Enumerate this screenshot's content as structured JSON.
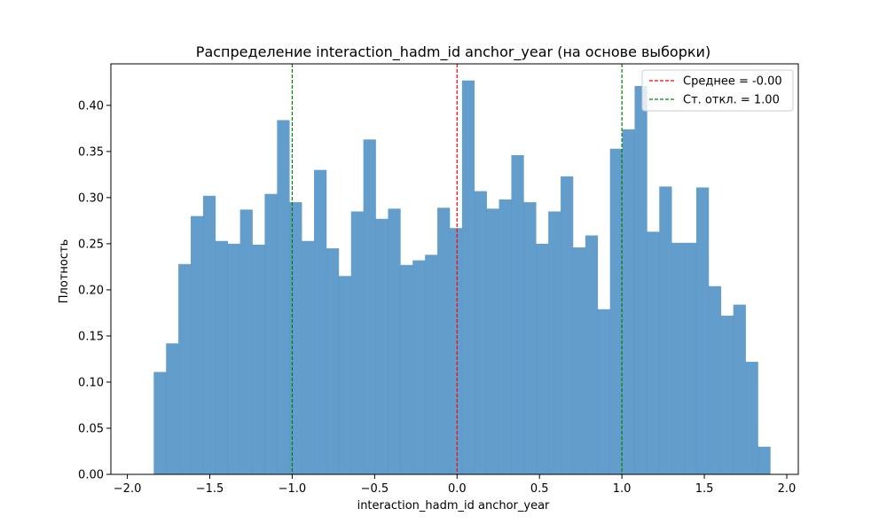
{
  "chart_data": {
    "type": "bar",
    "title": "Распределение interaction_hadm_id anchor_year (на основе выборки)",
    "xlabel": "interaction_hadm_id anchor_year",
    "ylabel": "Плотность",
    "xlim": [
      -2.1,
      2.07
    ],
    "ylim": [
      0,
      0.445
    ],
    "x_ticks": [
      "−2.0",
      "−1.5",
      "−1.0",
      "−0.5",
      "0.0",
      "0.5",
      "1.0",
      "1.5",
      "2.0"
    ],
    "x_tick_values": [
      -2.0,
      -1.5,
      -1.0,
      -0.5,
      0.0,
      0.5,
      1.0,
      1.5,
      2.0
    ],
    "y_ticks": [
      "0.00",
      "0.05",
      "0.10",
      "0.15",
      "0.20",
      "0.25",
      "0.30",
      "0.35",
      "0.40"
    ],
    "y_tick_values": [
      0.0,
      0.05,
      0.1,
      0.15,
      0.2,
      0.25,
      0.3,
      0.35,
      0.4
    ],
    "bin_start": -1.84,
    "bin_end": 1.9,
    "bar_color": "#4c8fc4",
    "values": [
      0.111,
      0.142,
      0.228,
      0.28,
      0.302,
      0.253,
      0.25,
      0.287,
      0.249,
      0.304,
      0.384,
      0.295,
      0.253,
      0.33,
      0.245,
      0.215,
      0.285,
      0.363,
      0.277,
      0.288,
      0.227,
      0.232,
      0.238,
      0.289,
      0.267,
      0.427,
      0.307,
      0.288,
      0.298,
      0.346,
      0.295,
      0.25,
      0.285,
      0.323,
      0.246,
      0.259,
      0.179,
      0.353,
      0.374,
      0.421,
      0.263,
      0.312,
      0.251,
      0.251,
      0.311,
      0.204,
      0.172,
      0.184,
      0.122,
      0.03
    ],
    "vlines": [
      {
        "x": 0.0,
        "color": "#ff0000",
        "label": "Среднее = -0.00"
      },
      {
        "x": -1.0,
        "color": "#008000",
        "label": "Ст. откл. = 1.00"
      },
      {
        "x": 1.0,
        "color": "#008000",
        "label": ""
      }
    ],
    "legend": {
      "placement": "top-right",
      "entries": [
        {
          "label": "Среднее = -0.00",
          "color": "#ff0000"
        },
        {
          "label": "Ст. откл. = 1.00",
          "color": "#008000"
        }
      ]
    },
    "grid": false
  }
}
